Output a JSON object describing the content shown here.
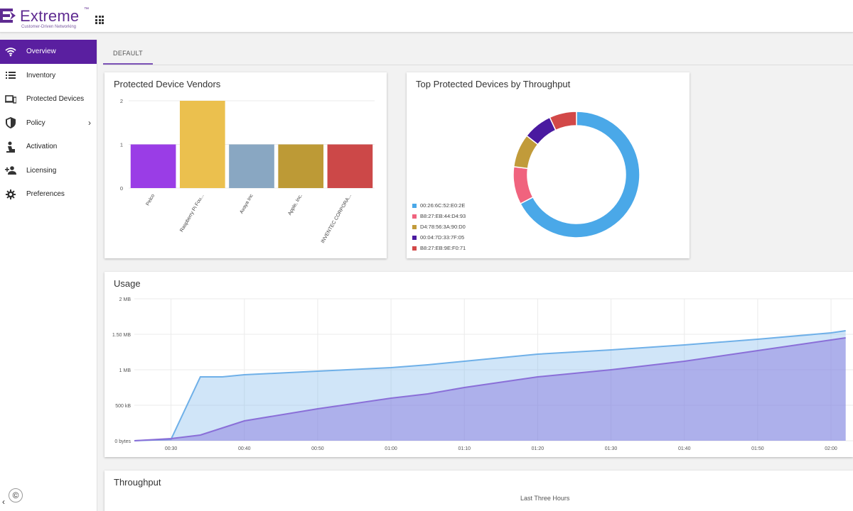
{
  "header": {
    "brand": "Extreme",
    "brand_mark": "™",
    "tagline": "Customer-Driven Networking",
    "apps_icon": "grid-icon"
  },
  "sidebar": {
    "items": [
      {
        "label": "Overview",
        "icon": "wifi-icon",
        "active": true
      },
      {
        "label": "Inventory",
        "icon": "list-icon",
        "active": false
      },
      {
        "label": "Protected Devices",
        "icon": "devices-icon",
        "active": false
      },
      {
        "label": "Policy",
        "icon": "shield-icon",
        "active": false,
        "chevron": "›"
      },
      {
        "label": "Activation",
        "icon": "activation-icon",
        "active": false
      },
      {
        "label": "Licensing",
        "icon": "person-add-icon",
        "active": false
      },
      {
        "label": "Preferences",
        "icon": "gear-icon",
        "active": false
      }
    ],
    "copyright": "©",
    "collapse": "‹"
  },
  "tabs": [
    {
      "label": "DEFAULT",
      "active": true
    }
  ],
  "colors": {
    "accent": "#5a1fa0",
    "tab_underline": "#7b52b6"
  },
  "cards": {
    "vendors": {
      "title": "Protected Device Vendors"
    },
    "throughput_top": {
      "title": "Top Protected Devices by Throughput"
    },
    "usage": {
      "title": "Usage"
    },
    "throughput": {
      "title": "Throughput",
      "subtitle": "Last Three Hours"
    }
  },
  "chart_data": [
    {
      "type": "bar",
      "title": "Protected Device Vendors",
      "categories": [
        "Pelco",
        "Raspberry Pi Fou...",
        "Avaya Inc",
        "Apple, Inc.",
        "INVENTEC CORPORA..."
      ],
      "values": [
        1,
        2,
        1,
        1,
        1
      ],
      "colors": [
        "#9a3de6",
        "#ebc04e",
        "#89a7c2",
        "#bd9a36",
        "#cc4848"
      ],
      "yticks": [
        "0",
        "1",
        "2"
      ],
      "ylim": [
        0,
        2
      ],
      "grid": true
    },
    {
      "type": "pie",
      "title": "Top Protected Devices by Throughput",
      "labels": [
        "00:26:6C:52:E0:2E",
        "B8:27:EB:44:D4:93",
        "D4:78:56:3A:90:D0",
        "00:04:7D:33:7F:05",
        "B8:27:EB:9E:F0:71"
      ],
      "values": [
        63,
        9,
        8,
        7,
        6.5
      ],
      "colors": [
        "#4aa8e8",
        "#f0637e",
        "#c19b3a",
        "#4a1aa0",
        "#d24848"
      ],
      "donut": true,
      "legend": "bottom-left"
    },
    {
      "type": "area",
      "title": "Usage",
      "x": [
        "00:25",
        "00:30",
        "00:34",
        "00:37",
        "00:40",
        "00:50",
        "01:00",
        "01:05",
        "01:10",
        "01:20",
        "01:30",
        "01:40",
        "01:50",
        "02:00",
        "02:02"
      ],
      "xticks": [
        "00:30",
        "00:40",
        "00:50",
        "01:00",
        "01:10",
        "01:20",
        "01:30",
        "01:40",
        "01:50",
        "02:00"
      ],
      "yticks": [
        "0 bytes",
        "500 kB",
        "1 MB",
        "1.50 MB",
        "2 MB"
      ],
      "ylim": [
        0,
        2
      ],
      "series": [
        {
          "color": "#6fb0e8",
          "values": [
            0,
            0.02,
            0.9,
            0.9,
            0.93,
            0.98,
            1.03,
            1.07,
            1.12,
            1.22,
            1.28,
            1.35,
            1.43,
            1.52,
            1.55
          ]
        },
        {
          "color": "#8a6fd8",
          "values": [
            0,
            0.03,
            0.08,
            0.18,
            0.28,
            0.45,
            0.6,
            0.66,
            0.75,
            0.9,
            1.0,
            1.12,
            1.27,
            1.42,
            1.45
          ]
        }
      ],
      "grid": true
    }
  ]
}
